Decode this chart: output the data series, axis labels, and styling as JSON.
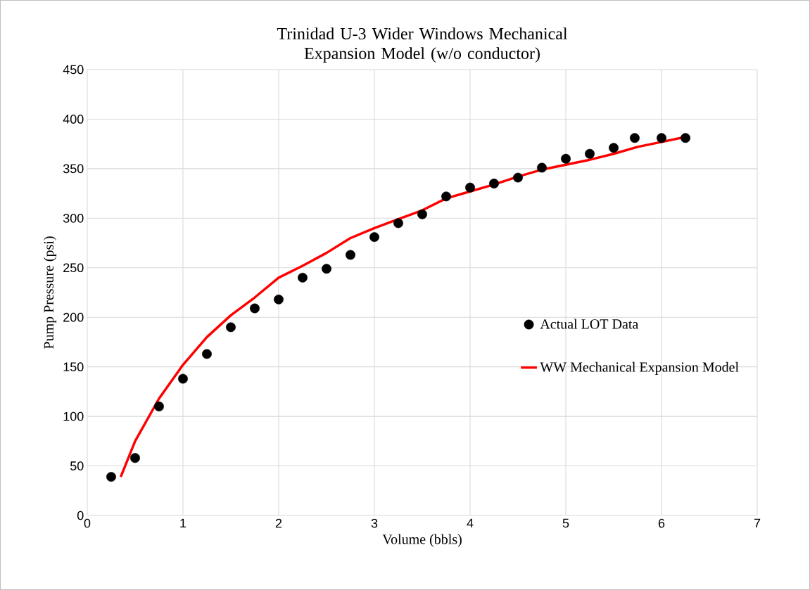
{
  "chart_data": {
    "type": "scatter",
    "title": "Trinidad U-3 Wider Windows Mechanical Expansion Model (w/o conductor)",
    "xlabel": "Volume (bbls)",
    "ylabel": "Pump Pressure (psi)",
    "xlim": [
      0,
      7
    ],
    "ylim": [
      0,
      450
    ],
    "xticks": [
      0,
      1,
      2,
      3,
      4,
      5,
      6,
      7
    ],
    "yticks": [
      0,
      50,
      100,
      150,
      200,
      250,
      300,
      350,
      400,
      450
    ],
    "grid": true,
    "legend": "right",
    "series": [
      {
        "name": "Actual LOT Data",
        "marker": "circle",
        "color": "#000000",
        "x": [
          0.25,
          0.5,
          0.75,
          1,
          1.25,
          1.5,
          1.75,
          2,
          2.25,
          2.5,
          2.75,
          3,
          3.25,
          3.5,
          3.75,
          4,
          4.25,
          4.5,
          4.75,
          5,
          5.25,
          5.5,
          5.72,
          6,
          6.25
        ],
        "values": [
          39,
          58,
          110,
          138,
          163,
          190,
          209,
          218,
          240,
          249,
          263,
          281,
          295,
          304,
          322,
          331,
          335,
          341,
          351,
          360,
          365,
          371,
          381,
          381,
          381
        ]
      },
      {
        "name": "WW Mechanical Expansion Model",
        "type": "line",
        "marker": "none",
        "line_style": "solid",
        "color": "#ff0000",
        "x": [
          0.35,
          0.5,
          0.75,
          1,
          1.25,
          1.5,
          1.75,
          2,
          2.25,
          2.5,
          2.75,
          3,
          3.25,
          3.5,
          3.75,
          4,
          4.25,
          4.5,
          4.75,
          5,
          5.25,
          5.5,
          5.75,
          6,
          6.25
        ],
        "values": [
          39,
          75,
          118,
          152,
          180,
          202,
          220,
          240,
          252,
          265,
          280,
          290,
          299,
          308,
          320,
          327,
          334,
          342,
          349,
          354,
          359,
          365,
          372,
          377,
          382
        ]
      }
    ]
  }
}
